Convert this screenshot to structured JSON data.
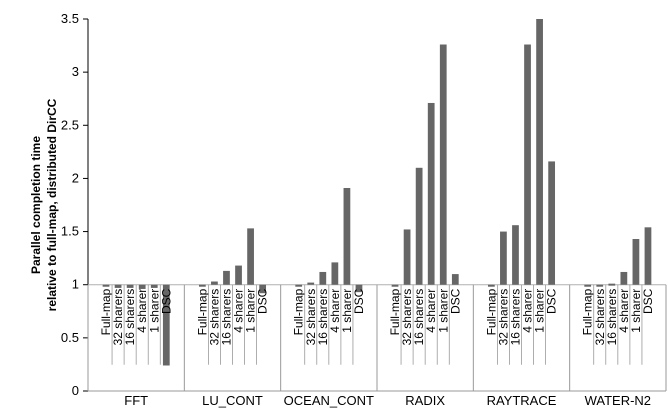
{
  "chart_data": {
    "type": "bar",
    "title": "",
    "xlabel": "",
    "ylabel_lines": [
      "Parallel completion time",
      "relative to full-map, distributed DirCC"
    ],
    "ylim": [
      0,
      3.5
    ],
    "yticks": [
      "0",
      "0.5",
      "1",
      "1.5",
      "2",
      "2.5",
      "3",
      "3.5"
    ],
    "baseline": 1,
    "grid": false,
    "bar_color": "#666666",
    "categories": [
      "Full-map",
      "32 sharers",
      "16 sharers",
      "4 sharer",
      "1 sharer",
      "DSC"
    ],
    "groups": [
      {
        "name": "FFT",
        "values": [
          1.0,
          0.97,
          0.97,
          0.96,
          0.97,
          0.24
        ]
      },
      {
        "name": "LU_CONT",
        "values": [
          1.0,
          1.03,
          1.13,
          1.18,
          1.53,
          0.92
        ]
      },
      {
        "name": "OCEAN_CONT",
        "values": [
          1.0,
          1.02,
          1.12,
          1.21,
          1.91,
          0.93
        ]
      },
      {
        "name": "RADIX",
        "values": [
          1.0,
          1.52,
          2.1,
          2.71,
          3.26,
          1.1
        ]
      },
      {
        "name": "RAYTRACE",
        "values": [
          1.0,
          1.5,
          1.56,
          3.26,
          3.5,
          2.16
        ]
      },
      {
        "name": "WATER-N2",
        "values": [
          1.0,
          1.0,
          1.01,
          1.12,
          1.43,
          1.54
        ]
      }
    ]
  }
}
